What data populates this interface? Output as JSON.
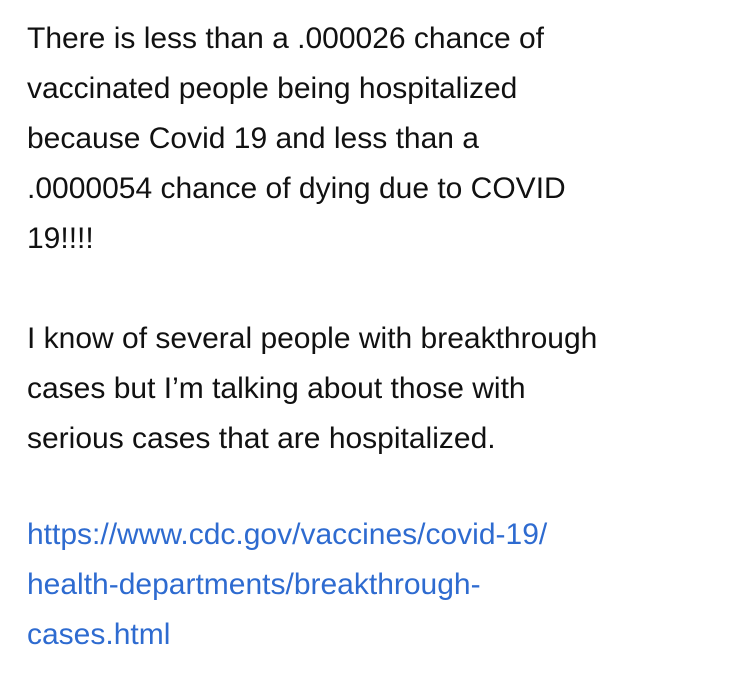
{
  "note": {
    "paragraph_1": {
      "lines": [
        "There is less than a .000026 chance of",
        "vaccinated people being hospitalized",
        "because Covid 19 and less than a",
        ".0000054 chance of dying due to COVID",
        "19!!!!"
      ]
    },
    "paragraph_2": {
      "lines": [
        "I know of several people with breakthrough",
        "cases but I’m talking about those with",
        "serious cases that are hospitalized."
      ]
    },
    "link": {
      "lines": [
        "https://www.cdc.gov/vaccines/covid-19/",
        "health-departments/breakthrough-",
        "cases.html"
      ],
      "color": "#2e6bd0"
    }
  }
}
